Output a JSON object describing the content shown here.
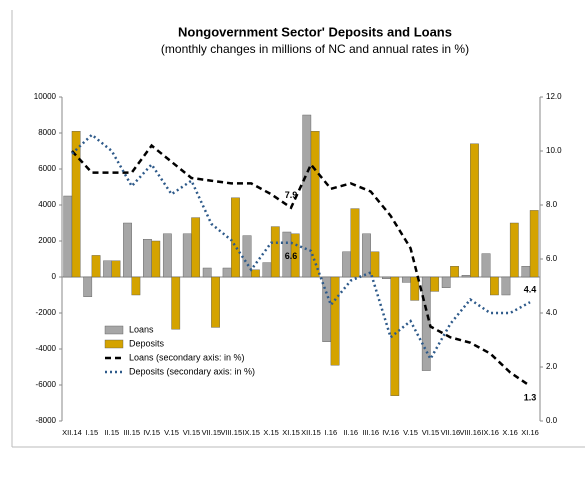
{
  "chart_data": {
    "type": "bar_line",
    "title": "Nongovernment Sector' Deposits and Loans",
    "subtitle": "(monthly changes in millions of NC and annual rates in %)",
    "categories": [
      "XII.14",
      "I.15",
      "II.15",
      "III.15",
      "IV.15",
      "V.15",
      "VI.15",
      "VII.15",
      "VIII.15",
      "IX.15",
      "X.15",
      "XI.15",
      "XII.15",
      "I.16",
      "II.16",
      "III.16",
      "IV.16",
      "V.15",
      "VI.15",
      "VII.16",
      "VIII.16",
      "IX.16",
      "X.16",
      "XI.16"
    ],
    "series": [
      {
        "name": "Loans",
        "kind": "bar",
        "color": "#a6a6a6",
        "values": [
          4500,
          -1100,
          900,
          3000,
          2100,
          2400,
          2400,
          500,
          500,
          2300,
          800,
          2500,
          9000,
          -3600,
          1400,
          2400,
          -100,
          -300,
          -5200,
          -600,
          100,
          1300,
          -1000,
          600
        ]
      },
      {
        "name": "Deposits",
        "kind": "bar",
        "color": "#d4a300",
        "values": [
          8100,
          1200,
          900,
          -1000,
          2000,
          -2900,
          3300,
          -2800,
          4400,
          400,
          2800,
          2400,
          8100,
          -4900,
          3800,
          1400,
          -6600,
          -1300,
          -800,
          600,
          7400,
          -1000,
          3000,
          3700
        ]
      },
      {
        "name": "Loans (secondary axis: in %)",
        "kind": "line",
        "axis": "y2",
        "color": "#000000",
        "dash": "6,4",
        "label_points": [
          11,
          23
        ],
        "values": [
          10.0,
          9.2,
          9.2,
          9.2,
          10.2,
          9.6,
          9.0,
          8.9,
          8.8,
          8.8,
          8.4,
          7.9,
          9.5,
          8.6,
          8.8,
          8.5,
          7.6,
          6.4,
          3.5,
          3.1,
          2.9,
          2.5,
          1.8,
          1.3
        ]
      },
      {
        "name": "Deposits (secondary axis: in %)",
        "kind": "line",
        "axis": "y2",
        "color": "#2e5a8a",
        "dash": "2,3",
        "label_points": [
          11,
          23
        ],
        "values": [
          9.9,
          10.6,
          10.0,
          8.7,
          9.5,
          8.4,
          8.9,
          7.3,
          6.7,
          5.6,
          6.6,
          6.6,
          6.3,
          4.3,
          5.2,
          5.5,
          3.1,
          3.7,
          2.3,
          3.6,
          4.5,
          4.0,
          4.0,
          4.4
        ]
      }
    ],
    "ylim": [
      -8000,
      10000
    ],
    "yticks": [
      -8000,
      -6000,
      -4000,
      -2000,
      0,
      2000,
      4000,
      6000,
      8000,
      10000
    ],
    "y2lim": [
      0,
      12
    ],
    "y2ticks": [
      {
        "value": 0,
        "label": "0.0"
      },
      {
        "value": 2,
        "label": "2.0"
      },
      {
        "value": 4,
        "label": "4.0"
      },
      {
        "value": 6,
        "label": "6.0"
      },
      {
        "value": 8,
        "label": "8.0"
      },
      {
        "value": 10,
        "label": "10.0"
      },
      {
        "value": 12,
        "label": "12.0"
      }
    ],
    "legend": "lower left"
  }
}
